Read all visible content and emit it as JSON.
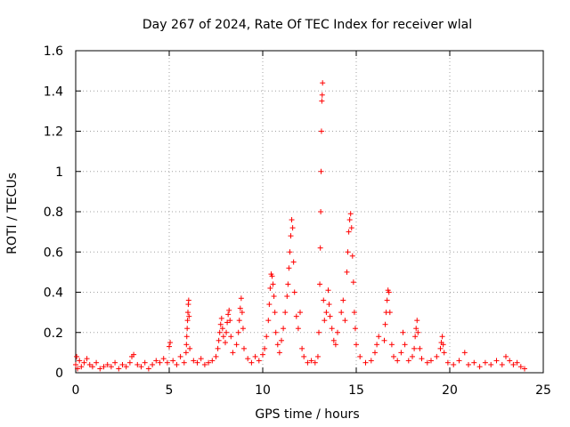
{
  "chart_data": {
    "type": "scatter",
    "title": "Day 267 of 2024, Rate Of TEC Index for receiver wlal",
    "xlabel": "GPS time / hours",
    "ylabel": "ROTI / TECUs",
    "xlim": [
      0,
      25
    ],
    "ylim": [
      0,
      1.6
    ],
    "xticks": [
      0,
      5,
      10,
      15,
      20,
      25
    ],
    "xtick_labels": [
      "0",
      "5",
      "10",
      "15",
      "20",
      "25"
    ],
    "yticks": [
      0,
      0.2,
      0.4,
      0.6,
      0.8,
      1.0,
      1.2,
      1.4,
      1.6
    ],
    "ytick_labels": [
      "0",
      "0.2",
      "0.4",
      "0.6",
      "0.8",
      "1",
      "1.2",
      "1.4",
      "1.6"
    ],
    "grid": true,
    "marker": "plus",
    "color": "#ff0000",
    "series": [
      {
        "points": [
          [
            0.0,
            0.04
          ],
          [
            0.05,
            0.08
          ],
          [
            0.1,
            0.02
          ],
          [
            0.2,
            0.06
          ],
          [
            0.3,
            0.03
          ],
          [
            0.45,
            0.05
          ],
          [
            0.6,
            0.07
          ],
          [
            0.75,
            0.04
          ],
          [
            0.9,
            0.03
          ],
          [
            1.1,
            0.05
          ],
          [
            1.3,
            0.02
          ],
          [
            1.5,
            0.03
          ],
          [
            1.7,
            0.04
          ],
          [
            1.9,
            0.03
          ],
          [
            2.1,
            0.05
          ],
          [
            2.3,
            0.02
          ],
          [
            2.5,
            0.04
          ],
          [
            2.7,
            0.03
          ],
          [
            2.9,
            0.05
          ],
          [
            3.0,
            0.08
          ],
          [
            3.1,
            0.09
          ],
          [
            3.3,
            0.04
          ],
          [
            3.5,
            0.03
          ],
          [
            3.7,
            0.05
          ],
          [
            3.9,
            0.02
          ],
          [
            4.1,
            0.04
          ],
          [
            4.3,
            0.06
          ],
          [
            4.5,
            0.05
          ],
          [
            4.7,
            0.07
          ],
          [
            4.9,
            0.05
          ],
          [
            5.0,
            0.13
          ],
          [
            5.05,
            0.15
          ],
          [
            5.2,
            0.06
          ],
          [
            5.4,
            0.04
          ],
          [
            5.6,
            0.08
          ],
          [
            5.8,
            0.05
          ],
          [
            5.9,
            0.1
          ],
          [
            5.92,
            0.14
          ],
          [
            5.94,
            0.18
          ],
          [
            5.96,
            0.22
          ],
          [
            5.98,
            0.26
          ],
          [
            6.0,
            0.3
          ],
          [
            6.02,
            0.34
          ],
          [
            6.04,
            0.36
          ],
          [
            6.06,
            0.28
          ],
          [
            6.1,
            0.12
          ],
          [
            6.3,
            0.06
          ],
          [
            6.5,
            0.05
          ],
          [
            6.7,
            0.07
          ],
          [
            6.9,
            0.04
          ],
          [
            7.1,
            0.05
          ],
          [
            7.3,
            0.06
          ],
          [
            7.5,
            0.08
          ],
          [
            7.6,
            0.12
          ],
          [
            7.65,
            0.16
          ],
          [
            7.7,
            0.2
          ],
          [
            7.75,
            0.24
          ],
          [
            7.8,
            0.27
          ],
          [
            7.85,
            0.22
          ],
          [
            7.9,
            0.18
          ],
          [
            8.0,
            0.15
          ],
          [
            8.05,
            0.2
          ],
          [
            8.1,
            0.25
          ],
          [
            8.15,
            0.29
          ],
          [
            8.2,
            0.31
          ],
          [
            8.25,
            0.26
          ],
          [
            8.3,
            0.18
          ],
          [
            8.4,
            0.1
          ],
          [
            8.6,
            0.14
          ],
          [
            8.7,
            0.2
          ],
          [
            8.75,
            0.26
          ],
          [
            8.8,
            0.32
          ],
          [
            8.85,
            0.37
          ],
          [
            8.9,
            0.3
          ],
          [
            8.95,
            0.22
          ],
          [
            9.0,
            0.12
          ],
          [
            9.2,
            0.07
          ],
          [
            9.4,
            0.05
          ],
          [
            9.6,
            0.08
          ],
          [
            9.8,
            0.06
          ],
          [
            10.0,
            0.09
          ],
          [
            10.1,
            0.12
          ],
          [
            10.2,
            0.18
          ],
          [
            10.3,
            0.26
          ],
          [
            10.35,
            0.34
          ],
          [
            10.4,
            0.42
          ],
          [
            10.45,
            0.49
          ],
          [
            10.5,
            0.48
          ],
          [
            10.55,
            0.44
          ],
          [
            10.6,
            0.38
          ],
          [
            10.65,
            0.3
          ],
          [
            10.7,
            0.2
          ],
          [
            10.8,
            0.14
          ],
          [
            10.9,
            0.1
          ],
          [
            11.0,
            0.16
          ],
          [
            11.1,
            0.22
          ],
          [
            11.2,
            0.3
          ],
          [
            11.3,
            0.38
          ],
          [
            11.35,
            0.44
          ],
          [
            11.4,
            0.52
          ],
          [
            11.45,
            0.6
          ],
          [
            11.5,
            0.68
          ],
          [
            11.55,
            0.76
          ],
          [
            11.6,
            0.72
          ],
          [
            11.65,
            0.55
          ],
          [
            11.7,
            0.4
          ],
          [
            11.8,
            0.28
          ],
          [
            11.9,
            0.22
          ],
          [
            12.0,
            0.3
          ],
          [
            12.1,
            0.12
          ],
          [
            12.2,
            0.08
          ],
          [
            12.4,
            0.05
          ],
          [
            12.6,
            0.06
          ],
          [
            12.8,
            0.05
          ],
          [
            12.95,
            0.08
          ],
          [
            13.0,
            0.2
          ],
          [
            13.05,
            0.44
          ],
          [
            13.08,
            0.62
          ],
          [
            13.1,
            0.8
          ],
          [
            13.12,
            1.0
          ],
          [
            13.14,
            1.2
          ],
          [
            13.16,
            1.35
          ],
          [
            13.18,
            1.38
          ],
          [
            13.2,
            1.44
          ],
          [
            13.25,
            0.36
          ],
          [
            13.3,
            0.26
          ],
          [
            13.4,
            0.3
          ],
          [
            13.5,
            0.41
          ],
          [
            13.55,
            0.34
          ],
          [
            13.6,
            0.28
          ],
          [
            13.7,
            0.22
          ],
          [
            13.8,
            0.16
          ],
          [
            13.9,
            0.14
          ],
          [
            14.0,
            0.2
          ],
          [
            14.2,
            0.3
          ],
          [
            14.3,
            0.36
          ],
          [
            14.4,
            0.26
          ],
          [
            14.5,
            0.5
          ],
          [
            14.55,
            0.6
          ],
          [
            14.6,
            0.7
          ],
          [
            14.65,
            0.76
          ],
          [
            14.7,
            0.79
          ],
          [
            14.75,
            0.72
          ],
          [
            14.8,
            0.58
          ],
          [
            14.85,
            0.45
          ],
          [
            14.9,
            0.3
          ],
          [
            14.95,
            0.22
          ],
          [
            15.0,
            0.14
          ],
          [
            15.2,
            0.08
          ],
          [
            15.5,
            0.05
          ],
          [
            15.8,
            0.06
          ],
          [
            16.0,
            0.1
          ],
          [
            16.1,
            0.14
          ],
          [
            16.2,
            0.18
          ],
          [
            16.5,
            0.16
          ],
          [
            16.55,
            0.24
          ],
          [
            16.6,
            0.3
          ],
          [
            16.65,
            0.36
          ],
          [
            16.7,
            0.41
          ],
          [
            16.75,
            0.4
          ],
          [
            16.8,
            0.3
          ],
          [
            16.9,
            0.14
          ],
          [
            17.0,
            0.08
          ],
          [
            17.2,
            0.06
          ],
          [
            17.4,
            0.1
          ],
          [
            17.5,
            0.2
          ],
          [
            17.6,
            0.14
          ],
          [
            17.8,
            0.06
          ],
          [
            18.0,
            0.08
          ],
          [
            18.1,
            0.12
          ],
          [
            18.15,
            0.18
          ],
          [
            18.2,
            0.22
          ],
          [
            18.25,
            0.26
          ],
          [
            18.3,
            0.2
          ],
          [
            18.4,
            0.12
          ],
          [
            18.5,
            0.07
          ],
          [
            18.8,
            0.05
          ],
          [
            19.0,
            0.06
          ],
          [
            19.3,
            0.08
          ],
          [
            19.5,
            0.12
          ],
          [
            19.55,
            0.15
          ],
          [
            19.6,
            0.18
          ],
          [
            19.65,
            0.14
          ],
          [
            19.7,
            0.1
          ],
          [
            19.9,
            0.05
          ],
          [
            20.2,
            0.04
          ],
          [
            20.5,
            0.06
          ],
          [
            20.8,
            0.1
          ],
          [
            21.0,
            0.04
          ],
          [
            21.3,
            0.05
          ],
          [
            21.6,
            0.03
          ],
          [
            21.9,
            0.05
          ],
          [
            22.2,
            0.04
          ],
          [
            22.5,
            0.06
          ],
          [
            22.8,
            0.04
          ],
          [
            23.0,
            0.08
          ],
          [
            23.2,
            0.06
          ],
          [
            23.4,
            0.04
          ],
          [
            23.6,
            0.05
          ],
          [
            23.8,
            0.03
          ],
          [
            24.0,
            0.02
          ]
        ]
      }
    ]
  }
}
